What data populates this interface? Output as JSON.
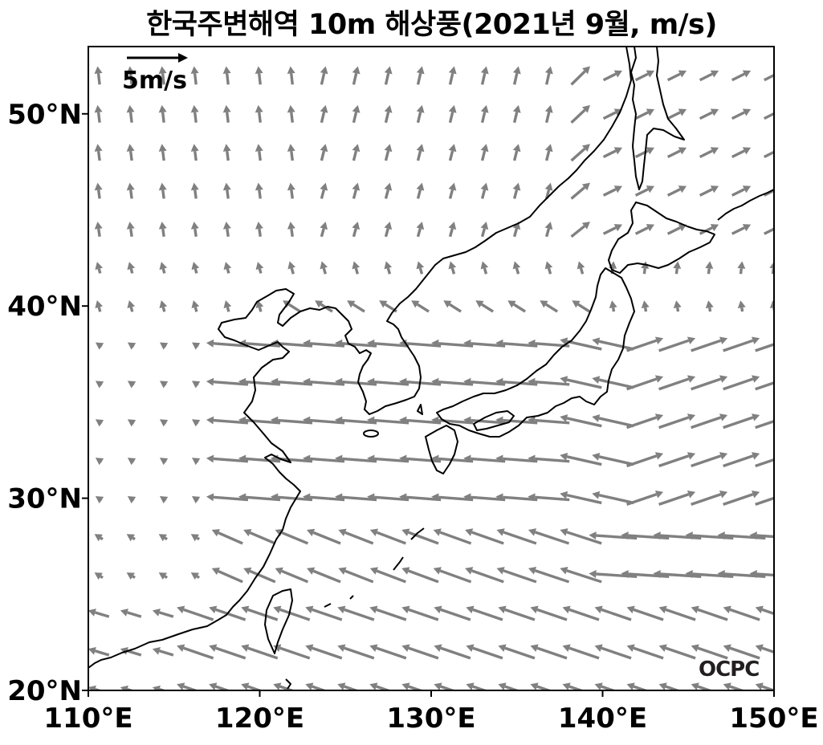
{
  "title": "한국주변해역 10m 해상풍(2021년 9월, m/s)",
  "map": {
    "lon_range": [
      110,
      150
    ],
    "lat_range": [
      20,
      53.5
    ],
    "x_ticks": [
      "110°E",
      "120°E",
      "130°E",
      "140°E",
      "150°E"
    ],
    "y_ticks": [
      "20°N",
      "30°N",
      "40°N",
      "50°N"
    ],
    "reference_vector_label": "5m/s",
    "reference_vector_speed": 5,
    "vector_color": "#808080",
    "coastline_color": "#000000",
    "logo_text": "OCPC"
  }
}
